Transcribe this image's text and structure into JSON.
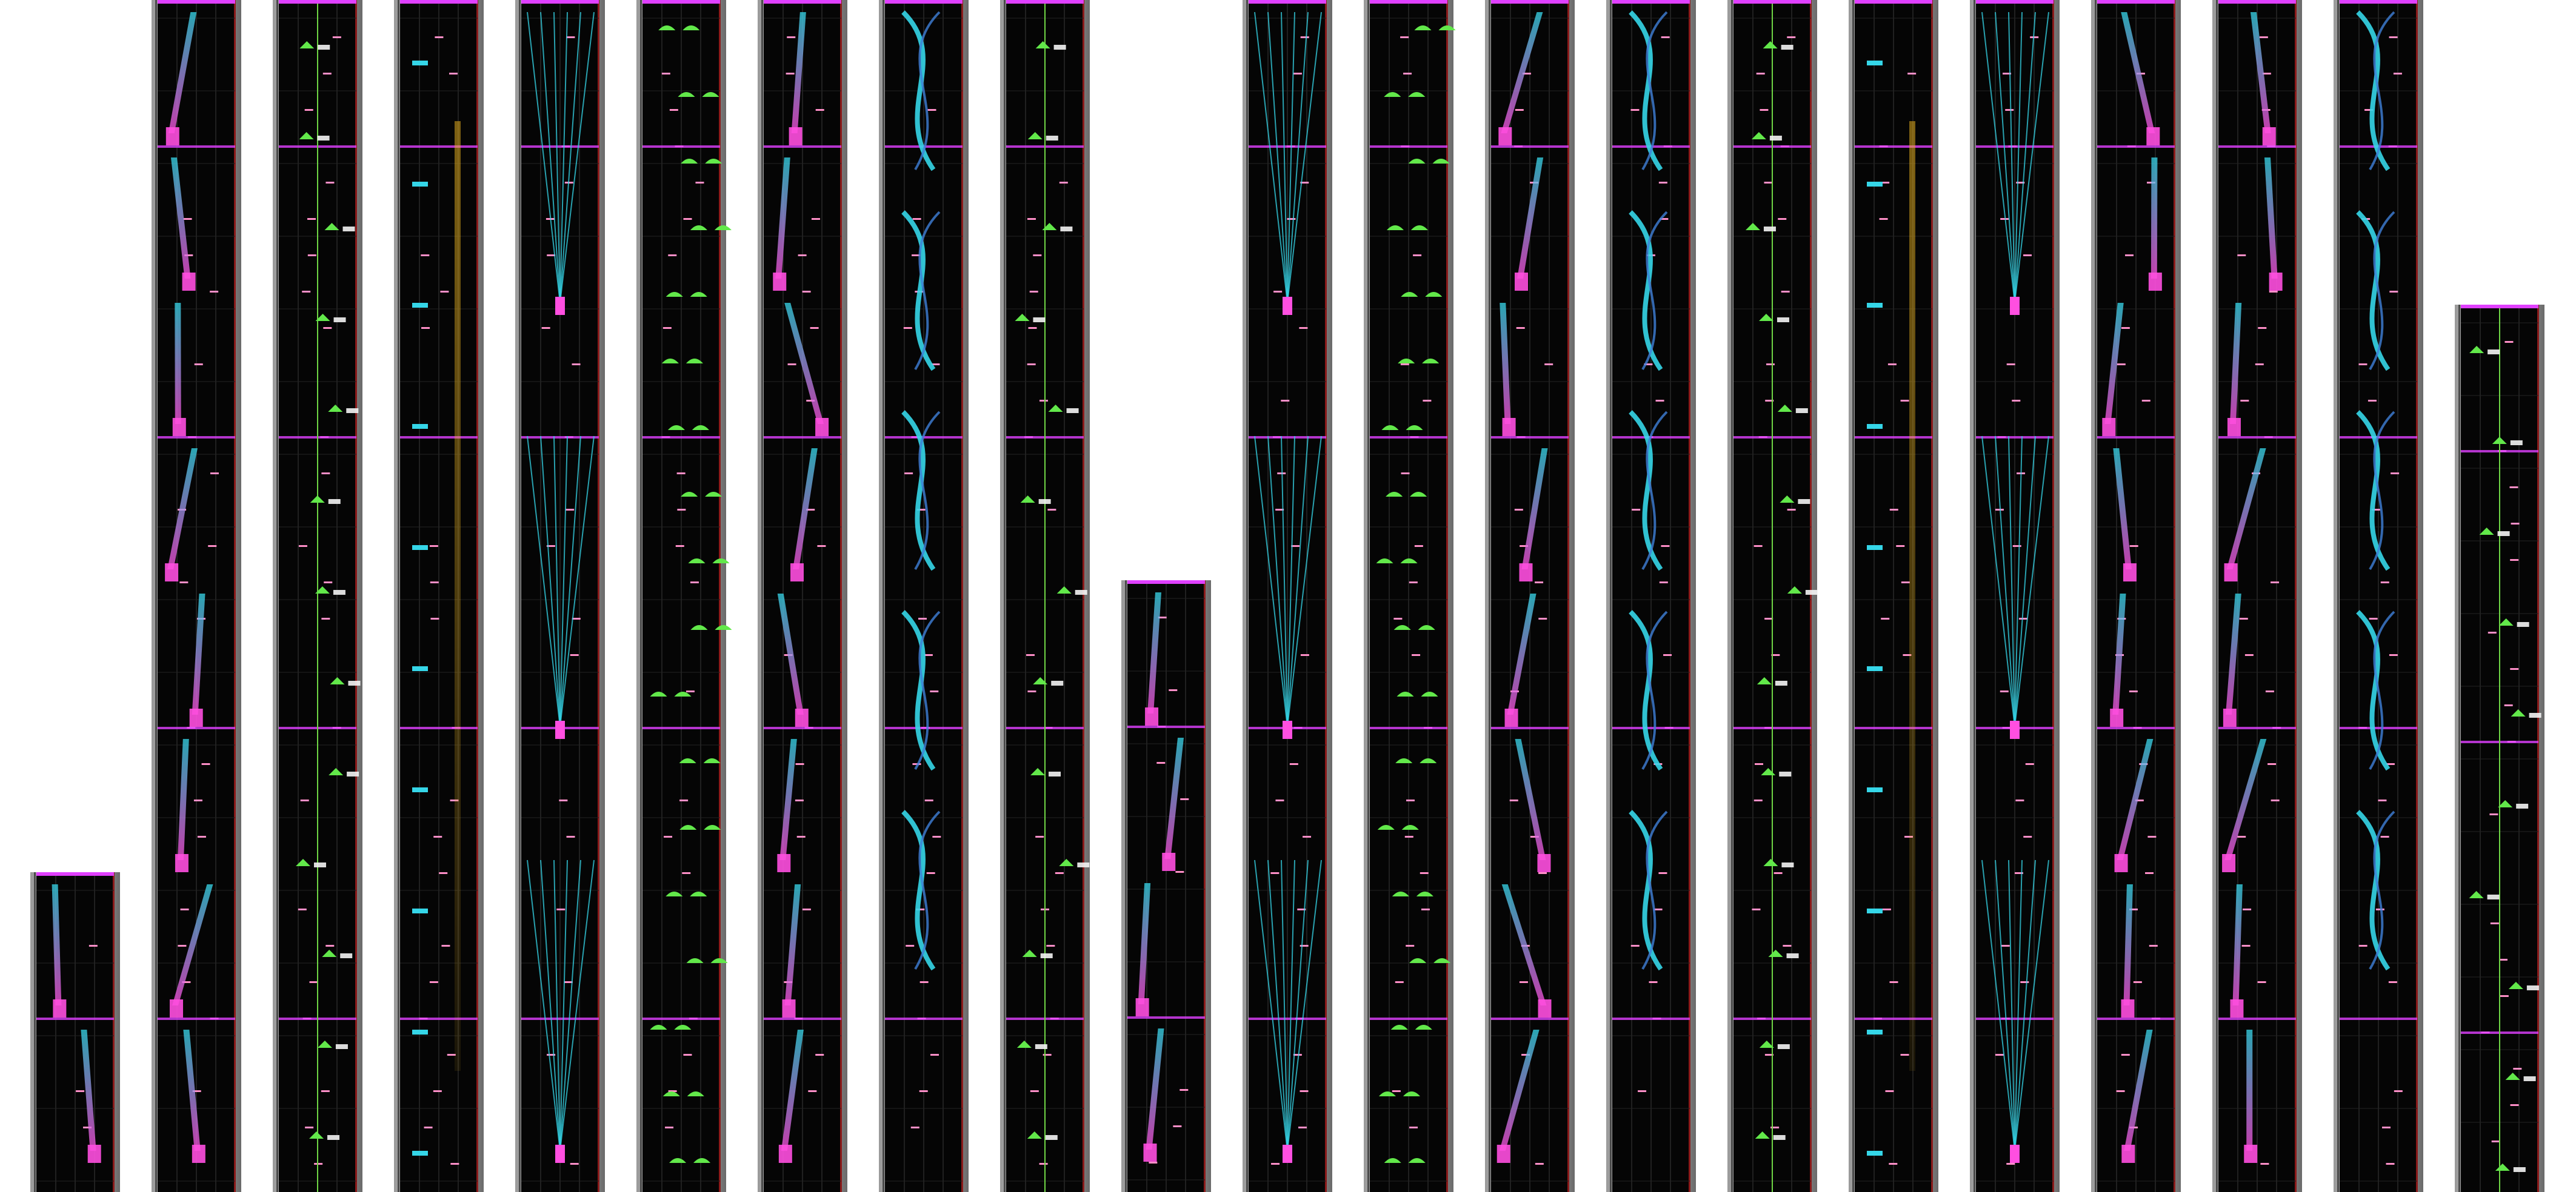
{
  "colors": {
    "page_background": "#ffffff",
    "lane_background": "#050505",
    "frame_light": "#d8d8d8",
    "frame_dark": "#4a4a4a",
    "frame_accent_red": "#8b1a1a",
    "grid_line": "#3a3a3a",
    "note_tap": "#ff8fc8",
    "note_hold": "#35d6e8",
    "note_slide": "#ff4fe0",
    "judge_line": "#e040ff",
    "flick_green": "#62e84a",
    "guide_line": "#6fd645",
    "gold": "#f2b81e",
    "white_note": "#f4f4f4"
  },
  "chart_preview": {
    "column_count": 21,
    "note_types": [
      "tap",
      "hold",
      "slide",
      "flick",
      "trace"
    ]
  }
}
